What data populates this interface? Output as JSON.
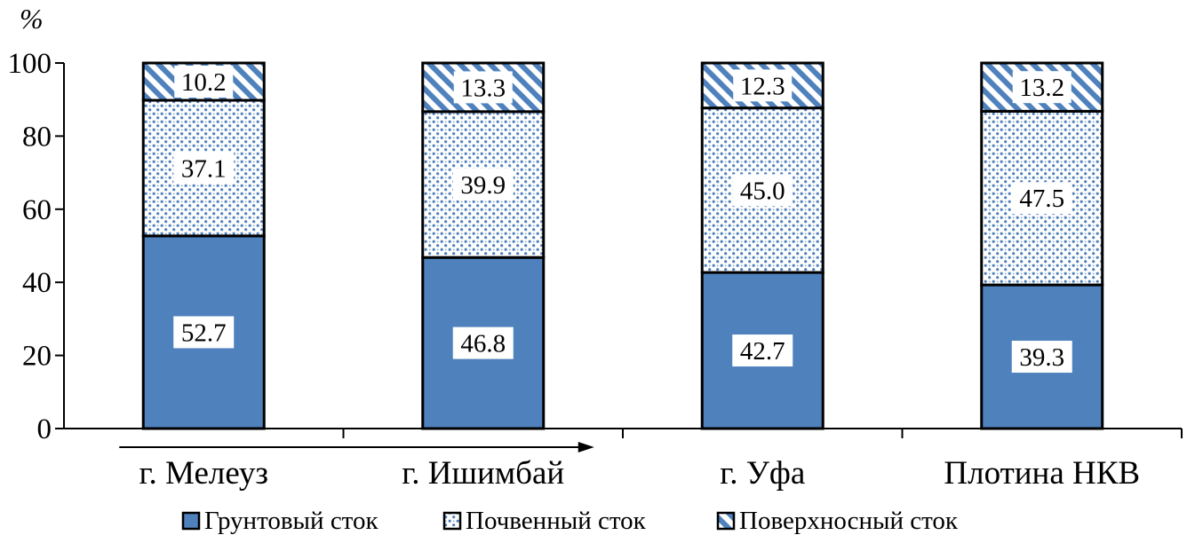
{
  "chart_data": {
    "type": "bar",
    "stacked": true,
    "ylabel": "%",
    "ylim": [
      0,
      100
    ],
    "yticks": [
      0,
      20,
      40,
      60,
      80,
      100
    ],
    "categories": [
      "г. Мелеуз",
      "г. Ишимбай",
      "г. Уфа",
      "Плотина НКВ"
    ],
    "series": [
      {
        "name": "Грунтовый сток",
        "values": [
          52.7,
          46.8,
          42.7,
          39.3
        ],
        "labels": [
          "52.7",
          "46.8",
          "42.7",
          "39.3"
        ],
        "color": "#4f81bd",
        "pattern": "solid"
      },
      {
        "name": "Почвенный сток",
        "values": [
          37.1,
          39.9,
          45.0,
          47.5
        ],
        "labels": [
          "37.1",
          "39.9",
          "45.0",
          "47.5"
        ],
        "color": "#4f81bd",
        "pattern": "dots"
      },
      {
        "name": "Поверхносный сток",
        "values": [
          10.2,
          13.3,
          12.3,
          13.2
        ],
        "labels": [
          "10.2",
          "13.3",
          "12.3",
          "13.2"
        ],
        "color": "#4f81bd",
        "pattern": "diagonal"
      }
    ],
    "flow_arrow": {
      "from_category": 0,
      "to_category": 1,
      "direction": "right"
    },
    "legend_position": "bottom",
    "grid": false
  }
}
